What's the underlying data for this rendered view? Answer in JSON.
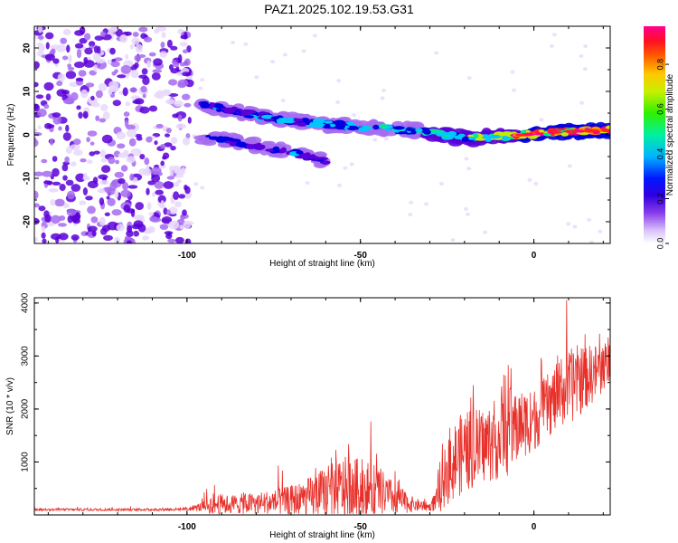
{
  "title": "PAZ1.2025.102.19.53.G31",
  "colors": {
    "snr_line": "#e8302a",
    "spectrogram_palette": [
      "#ffffff",
      "#e8d8fb",
      "#a66bf0",
      "#5a00d8",
      "#0000e0",
      "#00c8ff",
      "#00e890",
      "#c8e800",
      "#ff9000",
      "#ff2020",
      "#ff0090"
    ]
  },
  "chart_data": [
    {
      "id": "spectrogram",
      "type": "heatmap",
      "xlabel": "Height of straight line (km)",
      "ylabel": "Frequency (Hz)",
      "xlim": [
        -144,
        22
      ],
      "ylim": [
        -25,
        25
      ],
      "x_ticks": [
        "-100",
        "-50",
        "0"
      ],
      "x_tick_values": [
        -100,
        -50,
        0
      ],
      "y_ticks": [
        "20",
        "10",
        "0",
        "-10",
        "-20"
      ],
      "y_tick_values": [
        20,
        10,
        0,
        -10,
        -20
      ],
      "colorbar": {
        "label": "Normalized spectral amplitude",
        "range": [
          0,
          0.97
        ],
        "ticks": [
          "0.0",
          "0.2",
          "0.4",
          "0.6",
          "0.8"
        ],
        "tick_values": [
          0,
          0.2,
          0.4,
          0.6,
          0.8
        ]
      },
      "ridge": {
        "x": [
          -96,
          -90,
          -80,
          -70,
          -60,
          -50,
          -40,
          -30,
          -20,
          -10,
          0,
          10,
          22
        ],
        "frequency": [
          7,
          6,
          4.5,
          3.2,
          2.5,
          1.8,
          1.2,
          0.6,
          -0.8,
          -0.4,
          0.2,
          0.8,
          1.0
        ],
        "amplitude": [
          0.35,
          0.3,
          0.3,
          0.35,
          0.35,
          0.4,
          0.4,
          0.45,
          0.5,
          0.55,
          0.85,
          0.85,
          0.9
        ]
      },
      "secondary_band": {
        "x": [
          -96,
          -88,
          -80,
          -70,
          -60
        ],
        "frequency": [
          -0.5,
          -1.5,
          -2.5,
          -4,
          -6
        ],
        "amplitude": [
          0.35,
          0.3,
          0.25,
          0.3,
          0.25
        ]
      },
      "noise_region": {
        "x_range": [
          -144,
          -101
        ],
        "max_amplitude": 0.25
      }
    },
    {
      "id": "snr",
      "type": "line",
      "xlabel": "Height of straight line (km)",
      "ylabel": "SNR (10 * v/v)",
      "xlim": [
        -144,
        22
      ],
      "ylim": [
        0,
        4100
      ],
      "x_ticks": [
        "-100",
        "-50",
        "0"
      ],
      "x_tick_values": [
        -100,
        -50,
        0
      ],
      "y_ticks": [
        "1000",
        "2000",
        "3000",
        "4000"
      ],
      "y_tick_values": [
        1000,
        2000,
        3000,
        4000
      ],
      "envelope": {
        "x": [
          -144,
          -110,
          -100,
          -96,
          -92,
          -88,
          -80,
          -72,
          -66,
          -60,
          -55,
          -50,
          -45,
          -40,
          -35,
          -30,
          -27,
          -25,
          -20,
          -15,
          -10,
          -7,
          -4,
          0,
          3,
          8,
          12,
          15,
          18,
          22
        ],
        "base": [
          100,
          100,
          110,
          150,
          200,
          200,
          220,
          250,
          300,
          400,
          500,
          500,
          450,
          300,
          200,
          150,
          350,
          900,
          1200,
          1300,
          1450,
          1600,
          1700,
          1800,
          2000,
          2300,
          2500,
          2600,
          2700,
          2900
        ],
        "spread": [
          40,
          40,
          50,
          150,
          350,
          300,
          350,
          450,
          600,
          850,
          1000,
          950,
          800,
          500,
          250,
          120,
          500,
          1200,
          1300,
          1200,
          1300,
          1400,
          1100,
          1000,
          1000,
          1100,
          1200,
          1000,
          900,
          700
        ]
      }
    }
  ]
}
